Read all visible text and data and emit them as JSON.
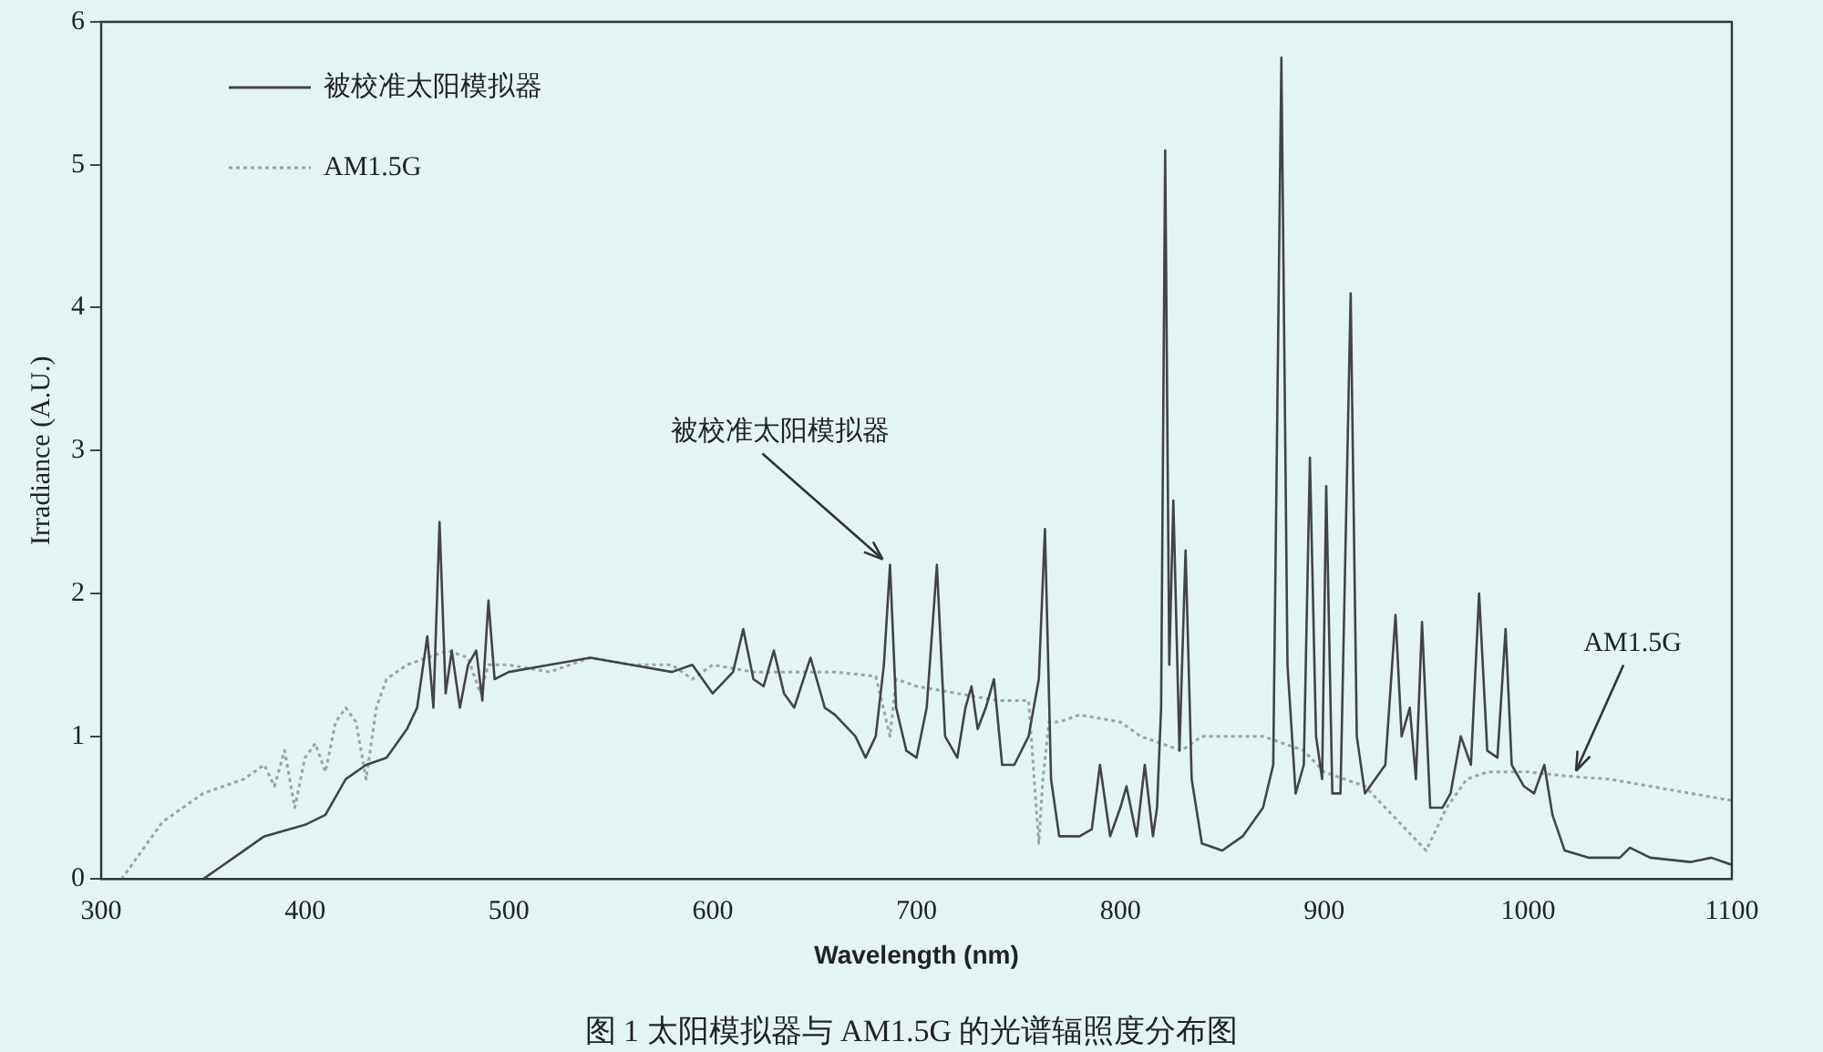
{
  "chart_data": {
    "type": "line",
    "xlabel": "Wavelength (nm)",
    "ylabel": "Irradiance (A.U.)",
    "xlim": [
      300,
      1100
    ],
    "xticks": [
      300,
      400,
      500,
      600,
      700,
      800,
      900,
      1000,
      1100
    ],
    "ylim": [
      0,
      6
    ],
    "yticks": [
      0,
      1,
      2,
      3,
      4,
      5,
      6
    ],
    "grid": false,
    "legend": "top left",
    "marker": "none",
    "annotations": [
      {
        "text": "被校准太阳模拟器",
        "x": 687,
        "y": 2.2
      },
      {
        "text": "AM1.5G",
        "x": 1020,
        "y": 0.72
      },
      "图 1 太阳模拟器与 AM1.5G 的光谱辐照度分布图"
    ],
    "series": [
      {
        "name": "被校准太阳模拟器",
        "color": "#444444",
        "line_style": "solid",
        "x": [
          350,
          360,
          380,
          400,
          410,
          420,
          430,
          440,
          450,
          455,
          460,
          463,
          466,
          469,
          472,
          476,
          480,
          484,
          487,
          490,
          493,
          500,
          520,
          540,
          560,
          580,
          590,
          600,
          610,
          615,
          620,
          625,
          630,
          635,
          640,
          648,
          655,
          660,
          670,
          675,
          680,
          684,
          687,
          690,
          695,
          700,
          705,
          710,
          714,
          720,
          724,
          727,
          730,
          734,
          738,
          742,
          748,
          755,
          760,
          763,
          766,
          770,
          780,
          786,
          790,
          795,
          800,
          803,
          808,
          812,
          816,
          818,
          820,
          822,
          824,
          826,
          829,
          832,
          835,
          840,
          850,
          860,
          870,
          875,
          879,
          882,
          886,
          890,
          893,
          896,
          899,
          901,
          904,
          908,
          913,
          916,
          920,
          925,
          930,
          935,
          938,
          942,
          945,
          948,
          952,
          958,
          962,
          967,
          972,
          976,
          980,
          985,
          989,
          992,
          998,
          1003,
          1008,
          1012,
          1018,
          1030,
          1045,
          1050,
          1060,
          1080,
          1090,
          1100
        ],
        "values": [
          0,
          0.1,
          0.3,
          0.38,
          0.45,
          0.7,
          0.8,
          0.85,
          1.05,
          1.2,
          1.7,
          1.2,
          2.5,
          1.3,
          1.6,
          1.2,
          1.5,
          1.6,
          1.25,
          1.95,
          1.4,
          1.45,
          1.5,
          1.55,
          1.5,
          1.45,
          1.5,
          1.3,
          1.45,
          1.75,
          1.4,
          1.35,
          1.6,
          1.3,
          1.2,
          1.55,
          1.2,
          1.15,
          1,
          0.85,
          1,
          1.5,
          2.2,
          1.2,
          0.9,
          0.85,
          1.2,
          2.2,
          1,
          0.85,
          1.2,
          1.35,
          1.05,
          1.2,
          1.4,
          0.8,
          0.8,
          1,
          1.4,
          2.45,
          0.7,
          0.3,
          0.3,
          0.35,
          0.8,
          0.3,
          0.5,
          0.65,
          0.3,
          0.8,
          0.3,
          0.5,
          1.2,
          5.1,
          1.5,
          2.65,
          0.9,
          2.3,
          0.7,
          0.25,
          0.2,
          0.3,
          0.5,
          0.8,
          5.75,
          1.5,
          0.6,
          0.8,
          2.95,
          1,
          0.7,
          2.75,
          0.6,
          0.6,
          4.1,
          1,
          0.6,
          0.7,
          0.8,
          1.85,
          1,
          1.2,
          0.7,
          1.8,
          0.5,
          0.5,
          0.6,
          1,
          0.8,
          2,
          0.9,
          0.85,
          1.75,
          0.8,
          0.65,
          0.6,
          0.8,
          0.45,
          0.2,
          0.15,
          0.15,
          0.22,
          0.15,
          0.12,
          0.15,
          0.1
        ]
      },
      {
        "name": "AM1.5G",
        "color": "#9aa4a4",
        "line_style": "dotted",
        "x": [
          310,
          320,
          330,
          340,
          350,
          360,
          370,
          380,
          385,
          390,
          395,
          400,
          405,
          410,
          415,
          420,
          425,
          430,
          435,
          440,
          450,
          460,
          470,
          480,
          486,
          490,
          500,
          520,
          540,
          560,
          580,
          590,
          600,
          620,
          640,
          660,
          680,
          687,
          690,
          700,
          720,
          740,
          755,
          760,
          762,
          765,
          770,
          780,
          800,
          810,
          820,
          830,
          840,
          850,
          870,
          880,
          890,
          900,
          910,
          920,
          930,
          940,
          950,
          960,
          970,
          980,
          1000,
          1020,
          1040,
          1060,
          1080,
          1100
        ],
        "values": [
          0,
          0.2,
          0.4,
          0.5,
          0.6,
          0.65,
          0.7,
          0.8,
          0.65,
          0.9,
          0.5,
          0.85,
          0.95,
          0.75,
          1.1,
          1.2,
          1.1,
          0.7,
          1.2,
          1.4,
          1.5,
          1.55,
          1.6,
          1.55,
          1.3,
          1.5,
          1.5,
          1.45,
          1.55,
          1.5,
          1.5,
          1.4,
          1.5,
          1.45,
          1.45,
          1.45,
          1.42,
          1,
          1.4,
          1.35,
          1.3,
          1.25,
          1.25,
          0.25,
          0.7,
          1.1,
          1.1,
          1.15,
          1.1,
          1,
          0.95,
          0.9,
          1,
          1,
          1,
          0.95,
          0.9,
          0.75,
          0.7,
          0.65,
          0.5,
          0.35,
          0.2,
          0.5,
          0.7,
          0.75,
          0.75,
          0.72,
          0.7,
          0.65,
          0.6,
          0.55
        ]
      }
    ]
  }
}
